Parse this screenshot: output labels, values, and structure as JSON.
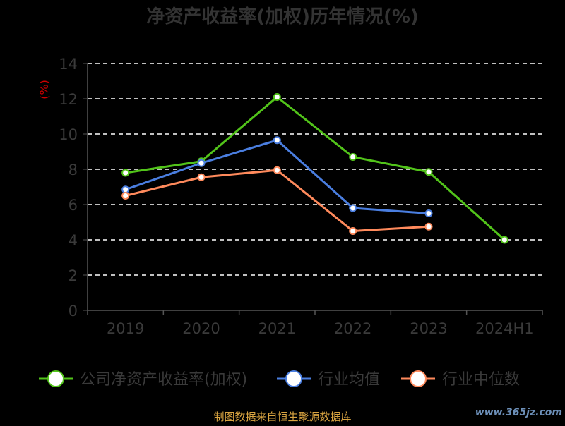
{
  "chart_data": {
    "type": "line",
    "title": "净资产收益率(加权)历年情况(%)",
    "ylabel": "(%)",
    "categories": [
      "2019",
      "2020",
      "2021",
      "2022",
      "2023",
      "2024H1"
    ],
    "ylim": [
      0,
      14
    ],
    "yticks": [
      0,
      2,
      4,
      6,
      8,
      10,
      12,
      14
    ],
    "grid": true,
    "legend_position": "bottom",
    "series": [
      {
        "name": "公司净资产收益率(加权)",
        "color": "#52c41a",
        "values": [
          7.8,
          8.45,
          12.1,
          8.7,
          7.85,
          4.0
        ]
      },
      {
        "name": "行业均值",
        "color": "#4a7ee0",
        "values": [
          6.85,
          8.35,
          9.65,
          5.8,
          5.5,
          null
        ]
      },
      {
        "name": "行业中位数",
        "color": "#ff8a5c",
        "values": [
          6.5,
          7.55,
          7.95,
          4.5,
          4.75,
          null
        ]
      }
    ]
  },
  "footer": {
    "source": "制图数据来自恒生聚源数据库",
    "watermark": "www.365jz.com"
  }
}
